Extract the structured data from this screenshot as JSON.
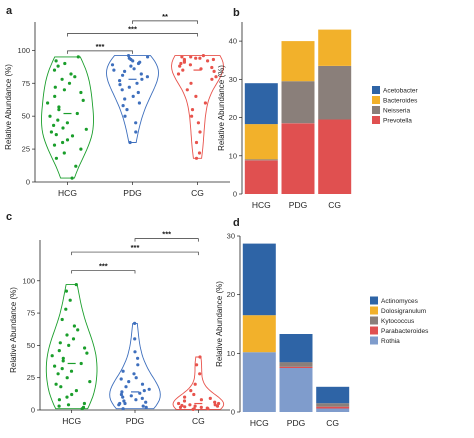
{
  "chart_data": [
    {
      "panel": "a",
      "type": "violin",
      "ylabel": "Relative Abundance (%)",
      "categories": [
        "HCG",
        "PDG",
        "CG"
      ],
      "yticks": [
        0,
        25,
        50,
        75,
        100
      ],
      "ylim": [
        0,
        120
      ],
      "colors": {
        "HCG": "#1a9e2b",
        "PDG": "#3e6fbd",
        "CG": "#e8534c"
      },
      "series": [
        {
          "name": "HCG",
          "values": [
            3,
            12,
            18,
            22,
            25,
            28,
            30,
            32,
            35,
            36,
            38,
            40,
            41,
            43,
            45,
            47,
            50,
            52,
            55,
            57,
            60,
            62,
            65,
            68,
            70,
            72,
            75,
            78,
            80,
            82,
            85,
            88,
            90,
            92,
            95
          ]
        },
        {
          "name": "PDG",
          "values": [
            30,
            38,
            45,
            50,
            55,
            58,
            60,
            63,
            65,
            68,
            70,
            72,
            74,
            75,
            77,
            78,
            80,
            81,
            82,
            84,
            85,
            86,
            88,
            89,
            90,
            91,
            92,
            93,
            94,
            95,
            96
          ]
        },
        {
          "name": "CG",
          "values": [
            18,
            22,
            30,
            38,
            45,
            50,
            55,
            60,
            65,
            70,
            75,
            78,
            80,
            82,
            84,
            85,
            86,
            87,
            88,
            89,
            90,
            91,
            92,
            92,
            93,
            93,
            94,
            94,
            95,
            95,
            96
          ]
        }
      ],
      "comparisons": [
        {
          "pair": [
            "HCG",
            "PDG"
          ],
          "label": "***"
        },
        {
          "pair": [
            "HCG",
            "CG"
          ],
          "label": "***"
        },
        {
          "pair": [
            "PDG",
            "CG"
          ],
          "label": "**"
        }
      ]
    },
    {
      "panel": "b",
      "type": "bar",
      "stacked": true,
      "ylabel": "Relative Abundance (%)",
      "categories": [
        "HCG",
        "PDG",
        "CG"
      ],
      "yticks": [
        0,
        10,
        20,
        30,
        40
      ],
      "ylim": [
        0,
        45
      ],
      "legend_position": "right",
      "series": [
        {
          "name": "Prevotella",
          "color": "#e05050",
          "values": [
            8.8,
            18.5,
            19.5
          ]
        },
        {
          "name": "Neisseria",
          "color": "#8a7f7a",
          "values": [
            0.3,
            11,
            14
          ]
        },
        {
          "name": "Bacteroides",
          "color": "#f2b12b",
          "values": [
            9.2,
            10.5,
            9.5
          ]
        },
        {
          "name": "Acetobacter",
          "color": "#2e64a6",
          "values": [
            10.7,
            0,
            0
          ]
        }
      ],
      "legend_order": [
        "Acetobacter",
        "Bacteroides",
        "Neisseria",
        "Prevotella"
      ]
    },
    {
      "panel": "c",
      "type": "violin",
      "ylabel": "Relative Abundance (%)",
      "categories": [
        "HCG",
        "PDG",
        "CG"
      ],
      "yticks": [
        0,
        25,
        50,
        75,
        100
      ],
      "ylim": [
        0,
        130
      ],
      "colors": {
        "HCG": "#1a9e2b",
        "PDG": "#3e6fbd",
        "CG": "#e8534c"
      },
      "series": [
        {
          "name": "HCG",
          "values": [
            1,
            2,
            3,
            4,
            5,
            8,
            10,
            12,
            15,
            18,
            20,
            22,
            25,
            28,
            30,
            32,
            34,
            36,
            38,
            40,
            42,
            44,
            46,
            48,
            50,
            52,
            55,
            58,
            62,
            65,
            70,
            78,
            85,
            92,
            97
          ]
        },
        {
          "name": "PDG",
          "values": [
            1,
            2,
            3,
            4,
            5,
            5,
            6,
            7,
            8,
            9,
            10,
            11,
            12,
            13,
            14,
            15,
            16,
            18,
            20,
            22,
            24,
            25,
            28,
            30,
            35,
            40,
            45,
            55,
            67
          ]
        },
        {
          "name": "CG",
          "values": [
            0.5,
            1,
            1,
            1.5,
            2,
            2,
            2.5,
            3,
            3,
            3.5,
            4,
            4,
            5,
            5,
            6,
            7,
            8,
            9,
            10,
            12,
            15,
            20,
            28,
            35,
            41
          ]
        }
      ],
      "comparisons": [
        {
          "pair": [
            "HCG",
            "PDG"
          ],
          "label": "***"
        },
        {
          "pair": [
            "HCG",
            "CG"
          ],
          "label": "***"
        },
        {
          "pair": [
            "PDG",
            "CG"
          ],
          "label": "***"
        }
      ]
    },
    {
      "panel": "d",
      "type": "bar",
      "stacked": true,
      "ylabel": "Relative Abundance (%)",
      "categories": [
        "HCG",
        "PDG",
        "CG"
      ],
      "yticks": [
        0,
        10,
        20,
        30
      ],
      "ylim": [
        0,
        30
      ],
      "legend_position": "right",
      "series": [
        {
          "name": "Rothia",
          "color": "#7f9ccc",
          "values": [
            10.2,
            7.5,
            0.6
          ]
        },
        {
          "name": "Parabacteroides",
          "color": "#e05050",
          "values": [
            0,
            0.2,
            0.3
          ]
        },
        {
          "name": "Kytococcus",
          "color": "#8a7f7a",
          "values": [
            0,
            0.8,
            0.6
          ]
        },
        {
          "name": "Dolosigranulum",
          "color": "#f2b12b",
          "values": [
            6.3,
            0,
            0
          ]
        },
        {
          "name": "Actinomyces",
          "color": "#2e64a6",
          "values": [
            12.2,
            4.8,
            2.8
          ]
        }
      ],
      "legend_order": [
        "Actinomyces",
        "Dolosigranulum",
        "Kytococcus",
        "Parabacteroides",
        "Rothia"
      ]
    }
  ]
}
